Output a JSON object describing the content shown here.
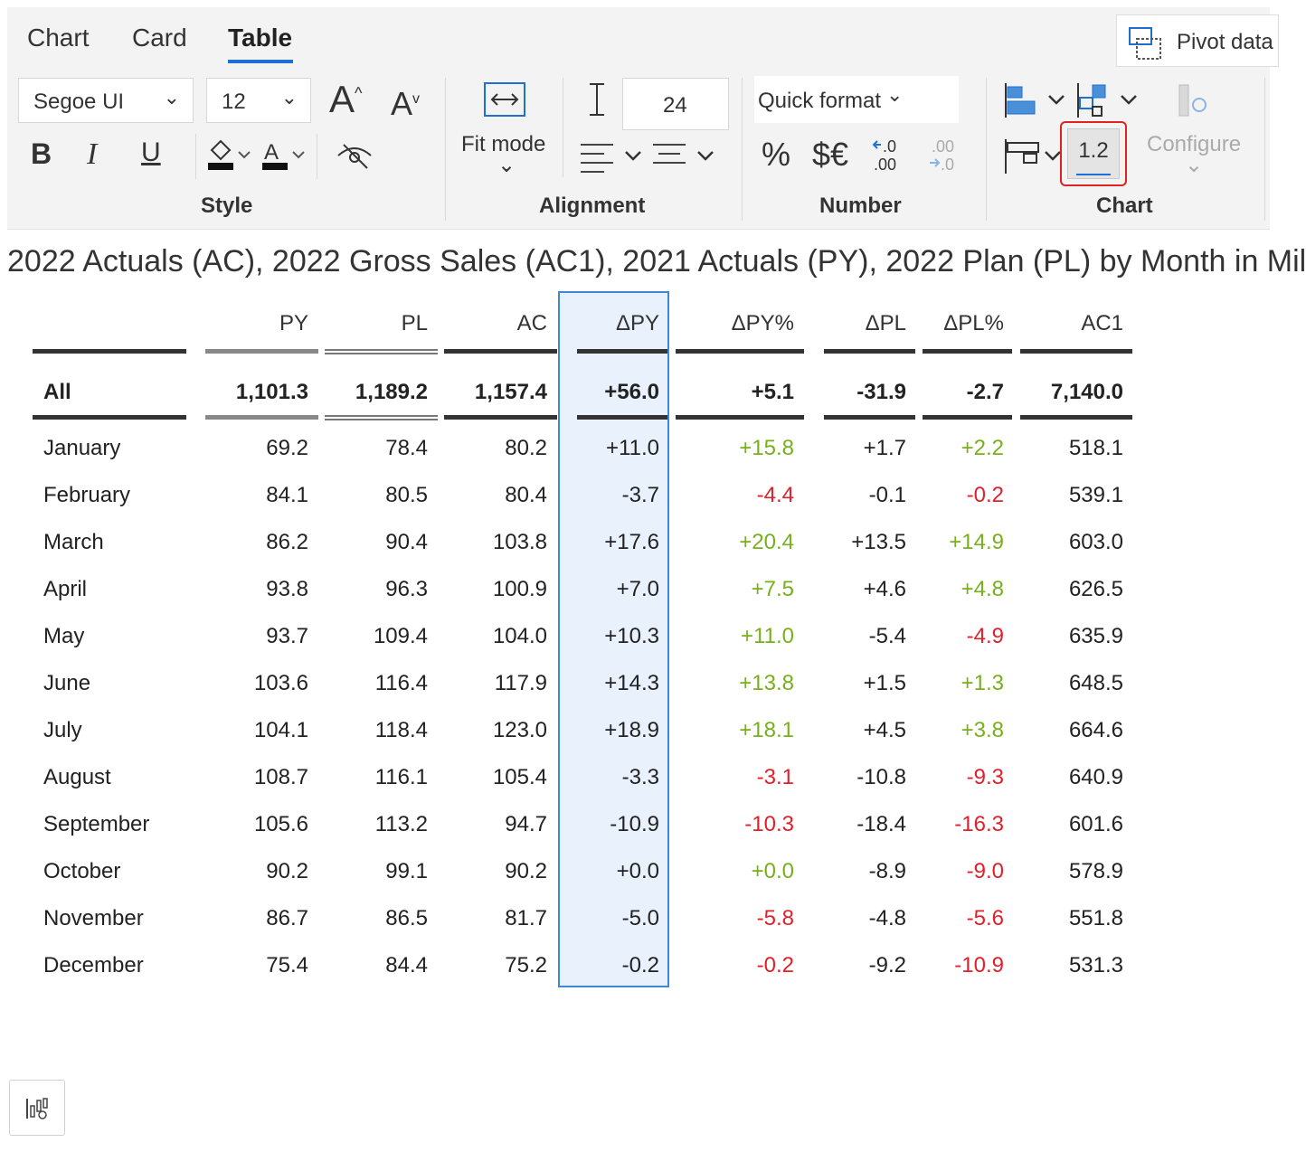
{
  "ribbon": {
    "tabs": [
      "Chart",
      "Card",
      "Table"
    ],
    "active_tab": "Table",
    "pivot_label": "Pivot data",
    "font_family_value": "Segoe UI",
    "font_size_value": "12",
    "bold_label": "B",
    "italic_label": "I",
    "underline_label": "U",
    "fit_mode_label": "Fit mode",
    "row_height_value": "24",
    "quick_format_label": "Quick format",
    "percent_label": "%",
    "currency_label": "$€",
    "decimal_value_button_label": "1.2",
    "configure_label": "Configure",
    "groups": {
      "style": "Style",
      "alignment": "Alignment",
      "number": "Number",
      "chart": "Chart"
    }
  },
  "table_title": "2022 Actuals (AC), 2022 Gross Sales (AC1), 2021 Actuals (PY), 2022 Plan (PL) by Month in Mil",
  "columns": [
    "PY",
    "PL",
    "AC",
    "ΔPY",
    "ΔPY%",
    "ΔPL",
    "ΔPL%",
    "AC1"
  ],
  "total_row": {
    "name": "All",
    "values": [
      "1,101.3",
      "1,189.2",
      "1,157.4",
      "+56.0",
      "+5.1",
      "-31.9",
      "-2.7",
      "7,140.0"
    ]
  },
  "rows": [
    {
      "name": "January",
      "values": [
        "69.2",
        "78.4",
        "80.2",
        "+11.0",
        "+15.8",
        "+1.7",
        "+2.2",
        "518.1"
      ]
    },
    {
      "name": "February",
      "values": [
        "84.1",
        "80.5",
        "80.4",
        "-3.7",
        "-4.4",
        "-0.1",
        "-0.2",
        "539.1"
      ]
    },
    {
      "name": "March",
      "values": [
        "86.2",
        "90.4",
        "103.8",
        "+17.6",
        "+20.4",
        "+13.5",
        "+14.9",
        "603.0"
      ]
    },
    {
      "name": "April",
      "values": [
        "93.8",
        "96.3",
        "100.9",
        "+7.0",
        "+7.5",
        "+4.6",
        "+4.8",
        "626.5"
      ]
    },
    {
      "name": "May",
      "values": [
        "93.7",
        "109.4",
        "104.0",
        "+10.3",
        "+11.0",
        "-5.4",
        "-4.9",
        "635.9"
      ]
    },
    {
      "name": "June",
      "values": [
        "103.6",
        "116.4",
        "117.9",
        "+14.3",
        "+13.8",
        "+1.5",
        "+1.3",
        "648.5"
      ]
    },
    {
      "name": "July",
      "values": [
        "104.1",
        "118.4",
        "123.0",
        "+18.9",
        "+18.1",
        "+4.5",
        "+3.8",
        "664.6"
      ]
    },
    {
      "name": "August",
      "values": [
        "108.7",
        "116.1",
        "105.4",
        "-3.3",
        "-3.1",
        "-10.8",
        "-9.3",
        "640.9"
      ]
    },
    {
      "name": "September",
      "values": [
        "105.6",
        "113.2",
        "94.7",
        "-10.9",
        "-10.3",
        "-18.4",
        "-16.3",
        "601.6"
      ]
    },
    {
      "name": "October",
      "values": [
        "90.2",
        "99.1",
        "90.2",
        "+0.0",
        "+0.0",
        "-8.9",
        "-9.0",
        "578.9"
      ]
    },
    {
      "name": "November",
      "values": [
        "86.7",
        "86.5",
        "81.7",
        "-5.0",
        "-5.8",
        "-4.8",
        "-5.6",
        "551.8"
      ]
    },
    {
      "name": "December",
      "values": [
        "75.4",
        "84.4",
        "75.2",
        "-0.2",
        "-0.2",
        "-9.2",
        "-10.9",
        "531.3"
      ]
    }
  ],
  "colors": {
    "positive": "#77b01c",
    "negative": "#e0202a",
    "selection": "#3b8ad7",
    "accent": "#1f6fd1"
  },
  "selected_column": "ΔPY"
}
